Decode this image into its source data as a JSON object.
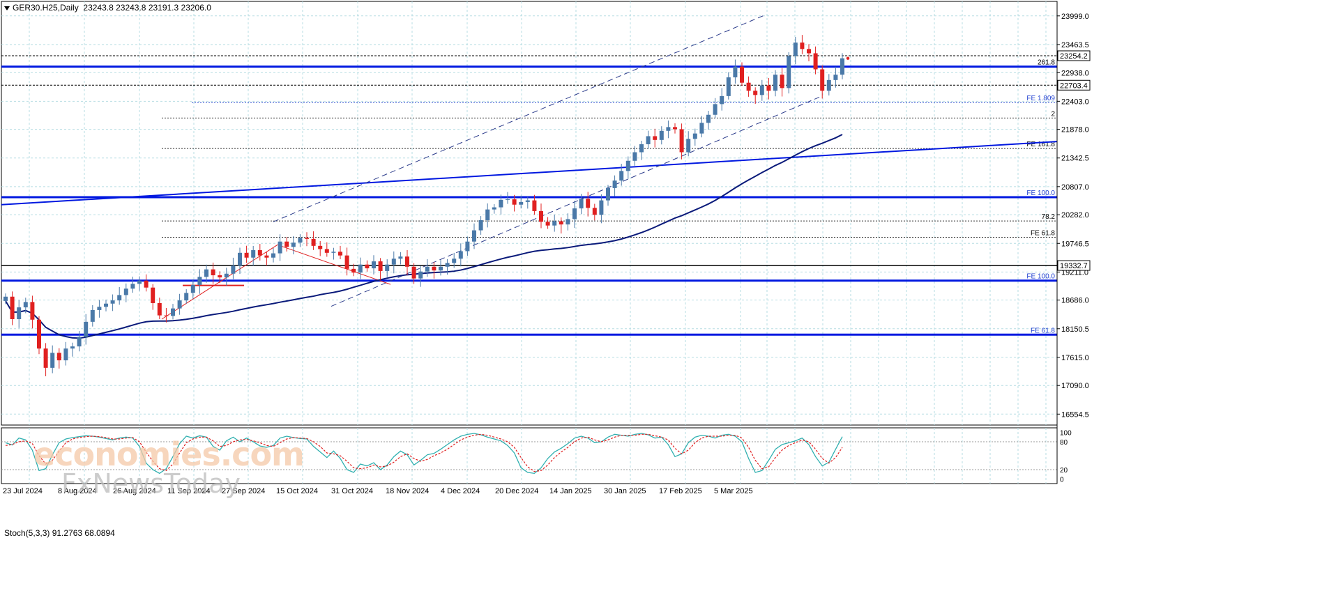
{
  "header": {
    "symbol": "GER30.H25,Daily",
    "ohlc": "23243.8 23243.8 23191.3 23206.0"
  },
  "watermark": {
    "line1": "economies.com",
    "line2": "FxNewsToday"
  },
  "colors": {
    "candle_up": "#4a79a8",
    "candle_down": "#e02020",
    "level_line": "#0018e0",
    "moving_average": "#0a1a7a",
    "grid": "#b7dde3",
    "stoch_main": "#30b0b0",
    "stoch_signal": "#e02020"
  },
  "chart_data": [
    {
      "type": "candlestick",
      "title": "",
      "y_axis": {
        "ticks": [
          "23999.0",
          "23463.5",
          "22938.0",
          "22403.0",
          "21878.0",
          "21342.5",
          "20807.0",
          "20282.0",
          "19746.5",
          "19211.0",
          "18686.0",
          "18150.5",
          "17615.0",
          "17090.0",
          "16554.5"
        ],
        "range": [
          16350,
          24270
        ]
      },
      "x_axis": {
        "ticks": [
          "23 Jul 2024",
          "8 Aug 2024",
          "26 Aug 2024",
          "11 Sep 2024",
          "27 Sep 2024",
          "15 Oct 2024",
          "31 Oct 2024",
          "18 Nov 2024",
          "4 Dec 2024",
          "20 Dec 2024",
          "14 Jan 2025",
          "30 Jan 2025",
          "17 Feb 2025",
          "5 Mar 2025"
        ]
      },
      "price_labels": [
        {
          "text": "23254.2",
          "value": 23254.2
        },
        {
          "text": "22703.4",
          "value": 22703.4
        },
        {
          "text": "19332.7",
          "value": 19332.7
        }
      ],
      "levels": [
        {
          "label": "261.8",
          "value": 23050
        },
        {
          "label": "FE 1.809",
          "value": 22380
        },
        {
          "label": "2",
          "value": 22090
        },
        {
          "label": "FE 161.8",
          "value": 21520
        },
        {
          "label": "FE 100.0",
          "value": 20610
        },
        {
          "label": "78.2",
          "value": 20165
        },
        {
          "label": "FE 61.8",
          "value": 19860
        },
        {
          "label": "FE 100.0",
          "value": 19050
        },
        {
          "label": "FE 61.8",
          "value": 18040
        }
      ],
      "close_series": [
        18750,
        18330,
        18550,
        18650,
        18320,
        17780,
        17420,
        17700,
        17560,
        17780,
        17820,
        18000,
        18280,
        18500,
        18560,
        18620,
        18680,
        18780,
        18900,
        18990,
        19050,
        18920,
        18630,
        18400,
        18390,
        18530,
        18680,
        18820,
        18970,
        19120,
        19260,
        19150,
        19110,
        19180,
        19330,
        19570,
        19480,
        19620,
        19520,
        19480,
        19560,
        19780,
        19680,
        19760,
        19850,
        19830,
        19700,
        19640,
        19570,
        19590,
        19520,
        19270,
        19200,
        19350,
        19280,
        19410,
        19230,
        19350,
        19460,
        19500,
        19310,
        19090,
        19220,
        19310,
        19240,
        19310,
        19380,
        19460,
        19600,
        19780,
        19990,
        20180,
        20380,
        20420,
        20560,
        20570,
        20470,
        20520,
        20550,
        20350,
        20150,
        20080,
        20160,
        20100,
        20200,
        20400,
        20580,
        20410,
        20280,
        20550,
        20780,
        20920,
        21100,
        21290,
        21450,
        21600,
        21750,
        21680,
        21850,
        21920,
        21880,
        21450,
        21700,
        21800,
        22000,
        22150,
        22350,
        22500,
        22850,
        23050,
        22750,
        22600,
        22520,
        22700,
        22600,
        22900,
        22650,
        23250,
        23500,
        23380,
        23300,
        23000,
        22600,
        22800,
        22900,
        23206
      ]
    },
    {
      "type": "line",
      "title": "Stoch(5,3,3) 91.2763 68.0894",
      "y_axis": {
        "ticks": [
          "100",
          "80",
          "20",
          "0"
        ],
        "range": [
          -10,
          110
        ]
      },
      "series": [
        {
          "name": "",
          "values": [
            78,
            73,
            88,
            84,
            62,
            18,
            22,
            52,
            78,
            86,
            89,
            91,
            93,
            92,
            90,
            87,
            84,
            88,
            90,
            88,
            70,
            34,
            20,
            12,
            22,
            48,
            76,
            92,
            88,
            93,
            90,
            70,
            62,
            82,
            90,
            80,
            88,
            80,
            71,
            68,
            72,
            88,
            92,
            89,
            87,
            86,
            70,
            58,
            46,
            60,
            44,
            20,
            14,
            32,
            28,
            35,
            20,
            30,
            48,
            60,
            52,
            30,
            40,
            52,
            55,
            64,
            74,
            84,
            92,
            96,
            98,
            95,
            90,
            86,
            82,
            72,
            56,
            24,
            14,
            12,
            24,
            44,
            58,
            66,
            76,
            88,
            92,
            88,
            78,
            80,
            90,
            96,
            94,
            92,
            96,
            98,
            95,
            88,
            90,
            74,
            48,
            54,
            78,
            90,
            94,
            92,
            88,
            94,
            96,
            92,
            80,
            44,
            14,
            18,
            40,
            64,
            74,
            78,
            82,
            88,
            74,
            48,
            28,
            36,
            64,
            91
          ]
        },
        {
          "name": "",
          "values": [
            72,
            74,
            80,
            82,
            76,
            50,
            32,
            40,
            60,
            78,
            86,
            89,
            91,
            92,
            91,
            89,
            86,
            86,
            88,
            89,
            80,
            58,
            38,
            22,
            18,
            32,
            56,
            78,
            86,
            90,
            90,
            82,
            70,
            72,
            80,
            84,
            85,
            82,
            78,
            72,
            70,
            78,
            86,
            89,
            88,
            87,
            80,
            70,
            56,
            54,
            50,
            38,
            24,
            22,
            24,
            30,
            26,
            28,
            36,
            48,
            54,
            44,
            38,
            42,
            50,
            56,
            64,
            74,
            84,
            90,
            94,
            96,
            94,
            90,
            86,
            80,
            68,
            46,
            26,
            16,
            18,
            30,
            46,
            58,
            68,
            80,
            88,
            90,
            84,
            80,
            84,
            90,
            94,
            94,
            94,
            96,
            96,
            93,
            90,
            84,
            66,
            54,
            62,
            78,
            88,
            92,
            92,
            92,
            94,
            94,
            88,
            68,
            40,
            22,
            26,
            46,
            62,
            72,
            78,
            84,
            80,
            64,
            44,
            34,
            46,
            68
          ]
        }
      ]
    }
  ]
}
